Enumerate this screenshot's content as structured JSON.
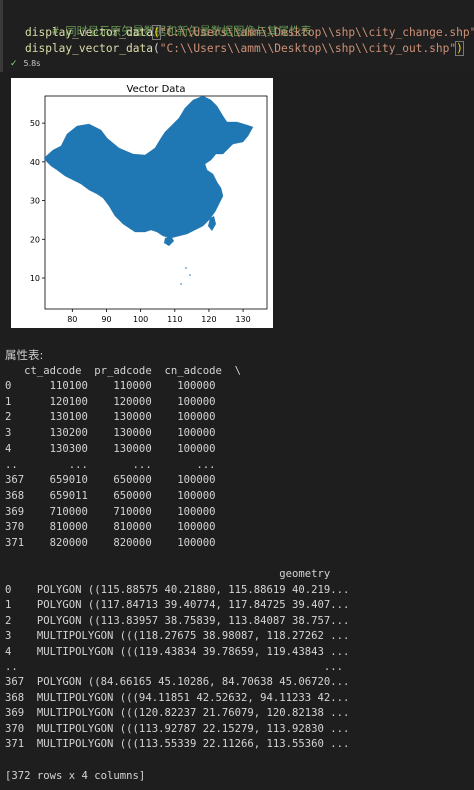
{
  "cell": {
    "lines": [
      {
        "comment": "# 同时显示原矢量数据和新矢量数据图像与其属性表"
      },
      {
        "fn": "display_vector_data",
        "open": "(",
        "arg": "\"C:\\\\Users\\\\amm\\\\Desktop\\\\shp\\\\city_change.shp\"",
        "close": ")"
      },
      {
        "fn": "display_vector_data",
        "open": "(",
        "arg": "\"C:\\\\Users\\\\amm\\\\Desktop\\\\shp\\\\city_out.shp\"",
        "close": ")"
      }
    ],
    "status_time": "5.8s",
    "status_icon": "check-icon"
  },
  "chart_data": {
    "type": "map",
    "title": "Vector Data",
    "xticks": [
      "80",
      "90",
      "100",
      "110",
      "120",
      "130"
    ],
    "yticks": [
      "50",
      "40",
      "30",
      "20",
      "10"
    ],
    "xlim": [
      72,
      137
    ],
    "ylim": [
      2,
      57
    ],
    "fill_color": "#1f77b4"
  },
  "output": {
    "attr_title": "属性表:",
    "table1_header": "   ct_adcode  pr_adcode  cn_adcode  \\",
    "table1_rows": [
      "0      110100    110000    100000",
      "1      120100    120000    100000",
      "2      130100    130000    100000",
      "3      130200    130000    100000",
      "4      130300    130000    100000",
      "..        ...       ...       ...",
      "367    659010    650000    100000",
      "368    659011    650000    100000",
      "369    710000    710000    100000",
      "370    810000    810000    100000",
      "371    820000    820000    100000"
    ],
    "table2_header": "                                           geometry",
    "table2_rows": [
      "0    POLYGON ((115.88575 40.21880, 115.88619 40.219...",
      "1    POLYGON ((117.84713 39.40774, 117.84725 39.407...",
      "2    POLYGON ((113.83957 38.75839, 113.84087 38.757...",
      "3    MULTIPOLYGON (((118.27675 38.98087, 118.27262 ...",
      "4    MULTIPOLYGON (((119.43834 39.78659, 119.43843 ...",
      "..                                                ...",
      "367  POLYGON ((84.66165 45.10286, 84.70638 45.06720...",
      "368  MULTIPOLYGON (((94.11851 42.52632, 94.11233 42...",
      "369  MULTIPOLYGON (((120.82237 21.76079, 120.82138 ...",
      "370  MULTIPOLYGON (((113.92787 22.15279, 113.92830 ...",
      "371  MULTIPOLYGON (((113.55339 22.11266, 113.55360 ..."
    ],
    "summary": "[372 rows x 4 columns]"
  }
}
